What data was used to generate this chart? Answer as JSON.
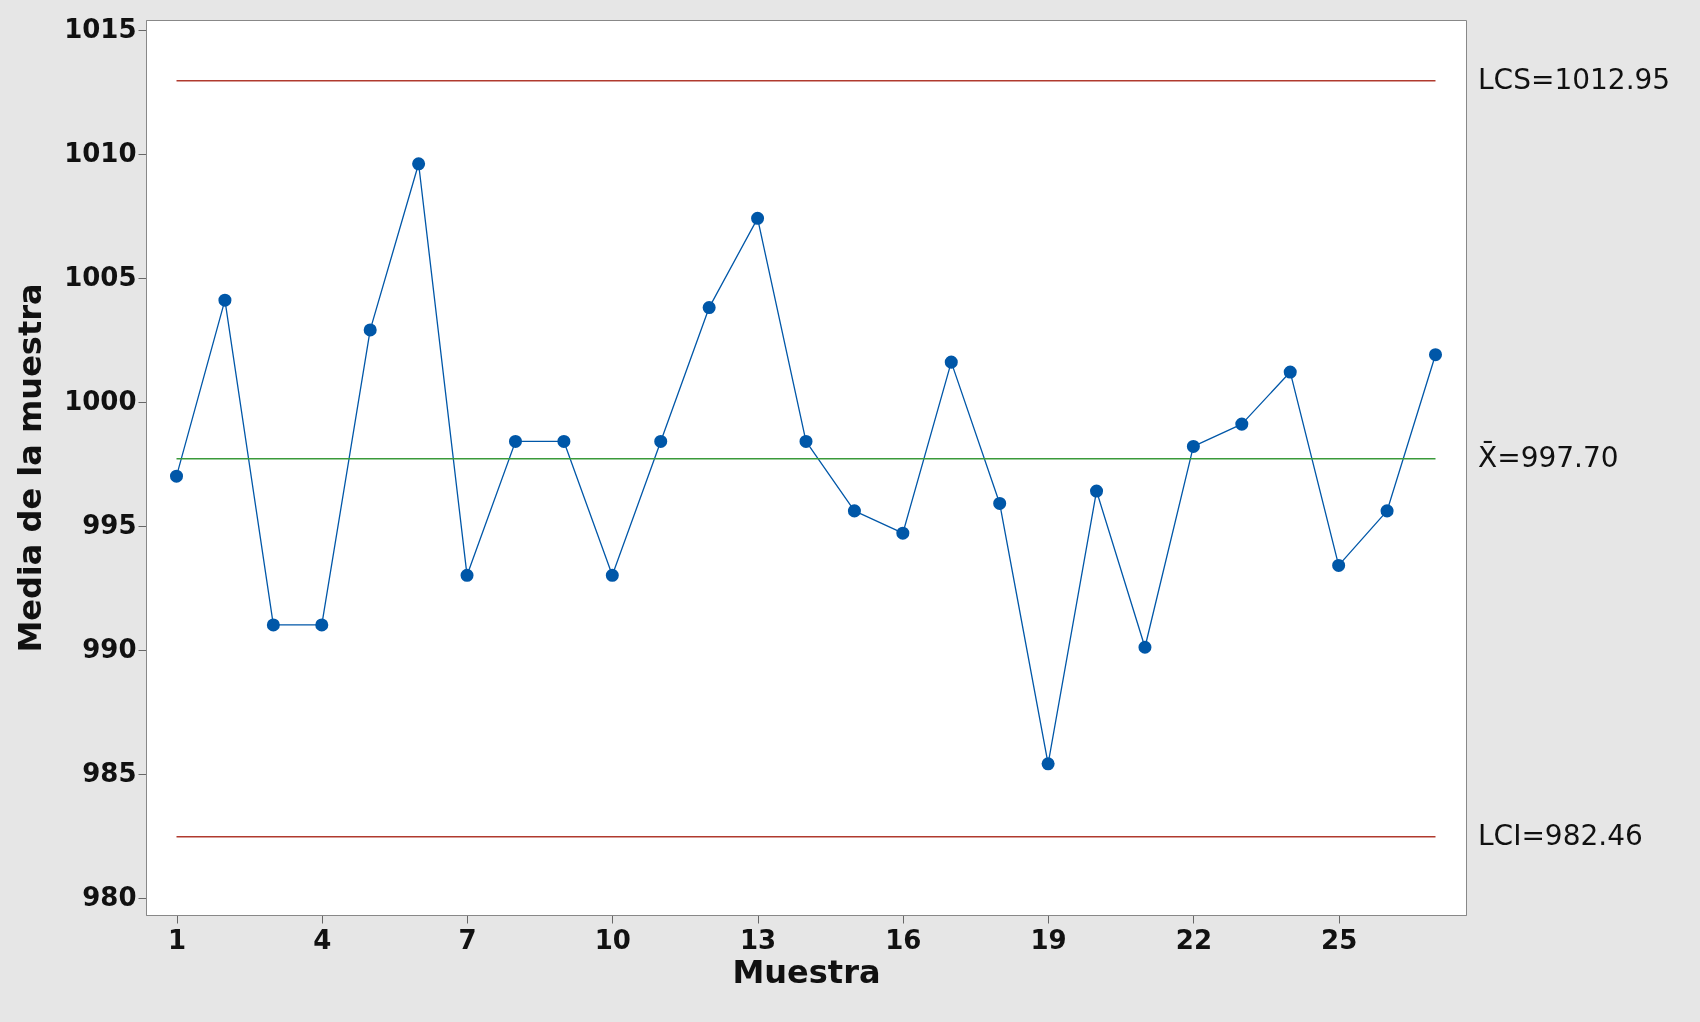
{
  "chart_data": {
    "type": "line",
    "xlabel": "Muestra",
    "ylabel": "Media de la muestra",
    "x": [
      1,
      2,
      3,
      4,
      5,
      6,
      7,
      8,
      9,
      10,
      11,
      12,
      13,
      14,
      15,
      16,
      17,
      18,
      19,
      20,
      21,
      22,
      23,
      24,
      25,
      26,
      27
    ],
    "series": [
      {
        "color": "#0057a8",
        "values": [
          997.0,
          1004.1,
          991.0,
          991.0,
          1002.9,
          1009.6,
          993.0,
          998.4,
          998.4,
          993.0,
          998.4,
          1003.8,
          1007.4,
          998.4,
          995.6,
          994.7,
          1001.6,
          995.9,
          985.4,
          996.4,
          990.1,
          998.2,
          999.1,
          1001.2,
          993.4,
          995.6,
          1001.9
        ]
      }
    ],
    "xlim": [
      0.37,
      27.63
    ],
    "xticks": [
      1,
      4,
      7,
      10,
      13,
      16,
      19,
      22,
      25
    ],
    "ylim": [
      979.3,
      1015.4
    ],
    "yticks": [
      980,
      985,
      990,
      995,
      1000,
      1005,
      1010,
      1015
    ],
    "grid": false,
    "marker": "circle",
    "line_style": "solid",
    "ref_lines": [
      {
        "axis": "y",
        "value": 1012.95,
        "label": "LCS=1012.95",
        "color": "#b03a2e"
      },
      {
        "axis": "y",
        "value": 997.7,
        "label": "X̄=997.70",
        "color": "#3a9a3a"
      },
      {
        "axis": "y",
        "value": 982.46,
        "label": "LCI=982.46",
        "color": "#b03a2e"
      }
    ]
  }
}
